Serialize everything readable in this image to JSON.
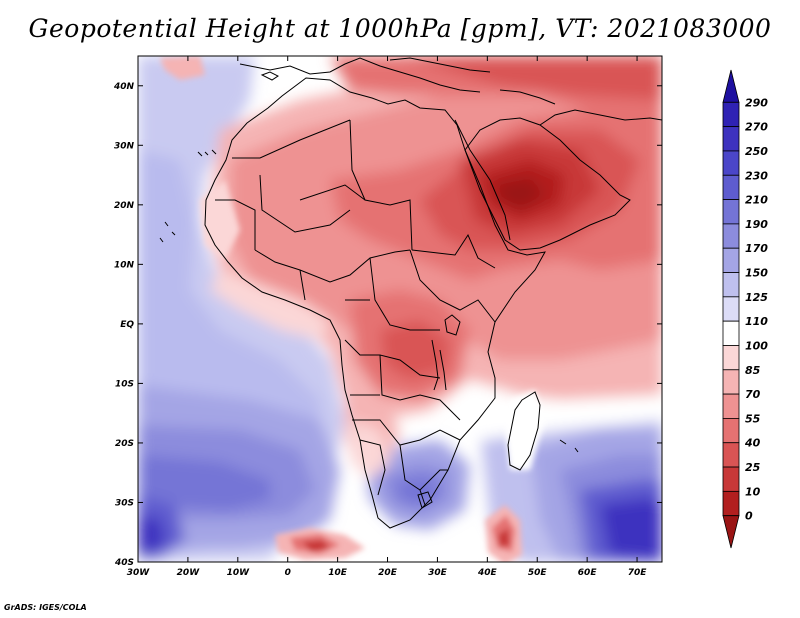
{
  "title": "Geopotential Height at 1000hPa [gpm], VT: 2021083000",
  "credit": "GrADS: IGES/COLA",
  "map": {
    "lon_labels": [
      "30W",
      "20W",
      "10W",
      "0",
      "10E",
      "20E",
      "30E",
      "40E",
      "50E",
      "60E",
      "70E"
    ],
    "lat_labels": [
      "40N",
      "30N",
      "20N",
      "10N",
      "EQ",
      "10S",
      "20S",
      "30S",
      "40S"
    ]
  },
  "colorbar": {
    "labels": [
      "290",
      "270",
      "250",
      "230",
      "210",
      "190",
      "170",
      "150",
      "125",
      "110",
      "100",
      "85",
      "70",
      "55",
      "40",
      "25",
      "10",
      "0"
    ],
    "colors": [
      "#1e10a0",
      "#2f22b4",
      "#3d32bf",
      "#4b46c9",
      "#5e5ccf",
      "#7474d6",
      "#8c8cdd",
      "#a4a5e5",
      "#bfc0ee",
      "#dcdcf7",
      "#ffffff",
      "#fbd7d7",
      "#f5b4b4",
      "#ee9292",
      "#e57272",
      "#d95454",
      "#c83838",
      "#b21f1f",
      "#9a1414"
    ]
  },
  "chart_data": {
    "type": "heatmap",
    "title": "Geopotential Height at 1000hPa [gpm], VT: 2021083000",
    "variable": "Geopotential Height at 1000hPa",
    "units": "gpm",
    "valid_time": "2021083000",
    "x_range": [
      -30,
      75
    ],
    "y_range": [
      -40,
      45
    ],
    "x_ticks": [
      -30,
      -20,
      -10,
      0,
      10,
      20,
      30,
      40,
      50,
      60,
      70
    ],
    "y_ticks": [
      40,
      30,
      20,
      10,
      0,
      -10,
      -20,
      -30,
      -40
    ],
    "levels": [
      0,
      10,
      25,
      40,
      55,
      70,
      85,
      100,
      110,
      125,
      150,
      170,
      190,
      210,
      230,
      250,
      270,
      290
    ],
    "colorbar": "right, vertical"
  }
}
